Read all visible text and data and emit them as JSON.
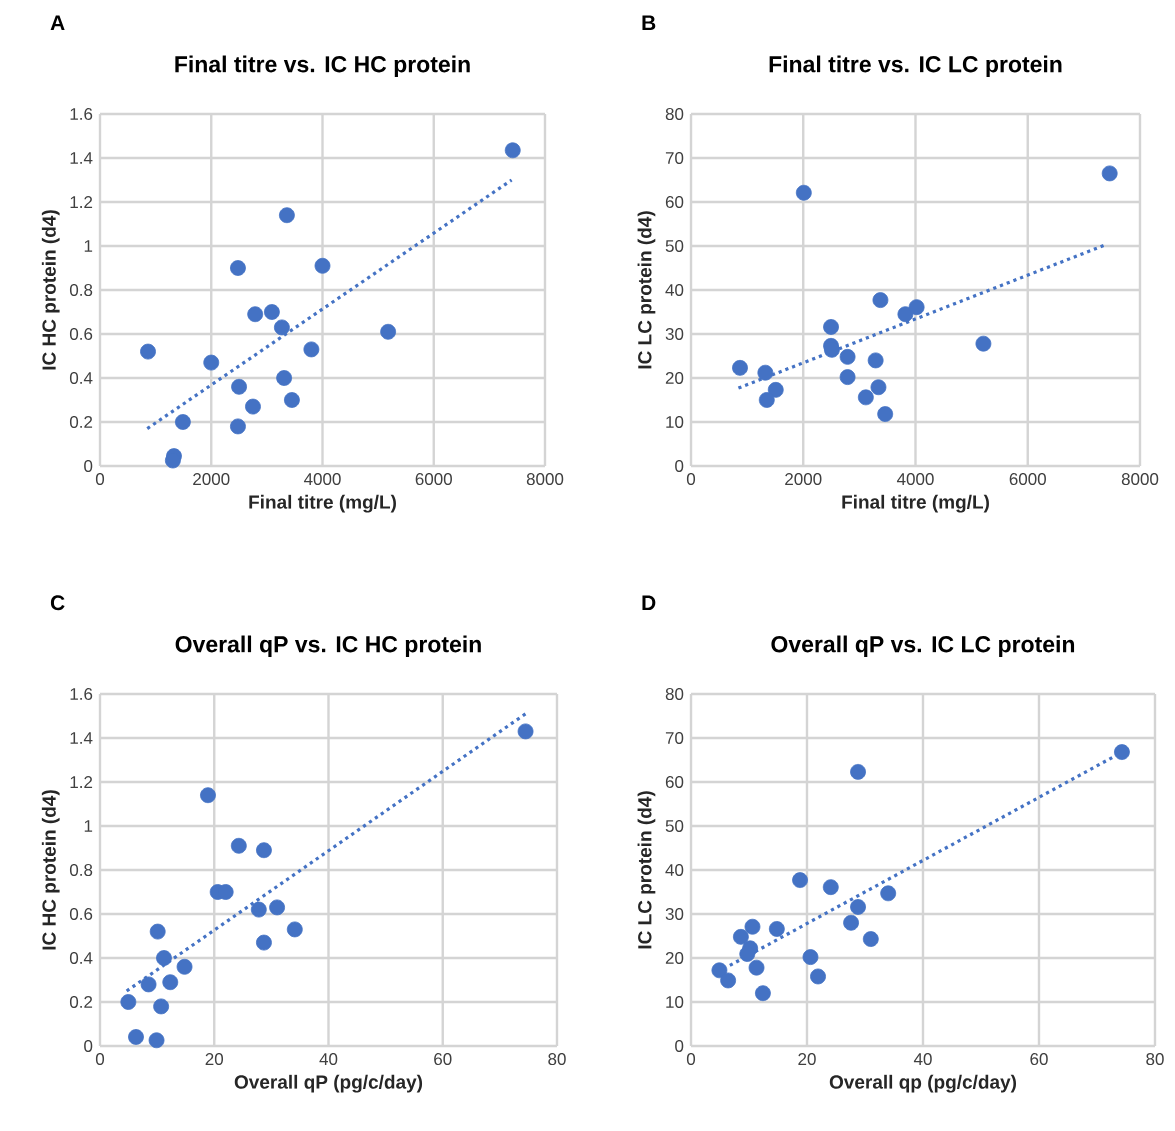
{
  "chart_data": [
    {
      "type": "scatter",
      "title": "Final titre vs. IC HC protein",
      "xlabel": "Final titre (mg/L)",
      "ylabel": "IC HC protein (d4)",
      "annotations": [
        "A"
      ],
      "xlim": [
        0,
        8000
      ],
      "xticks": [
        0,
        2000,
        4000,
        6000,
        8000
      ],
      "ylim": [
        0,
        1.6
      ],
      "yticks": [
        0,
        0.2,
        0.4,
        0.6,
        0.8,
        1,
        1.2,
        1.4,
        1.6
      ],
      "grid": true,
      "series": [
        {
          "marker": "circle",
          "color": "#4472c4",
          "x": [
            863,
            2480,
            3360,
            4000,
            2790,
            3090,
            3270,
            3800,
            5180,
            2000,
            2500,
            2750,
            3310,
            3450,
            1490,
            2480,
            1330,
            1310,
            7420
          ],
          "values": [
            0.52,
            0.9,
            1.14,
            0.91,
            0.69,
            0.7,
            0.63,
            0.53,
            0.61,
            0.47,
            0.36,
            0.27,
            0.4,
            0.3,
            0.2,
            0.18,
            0.045,
            0.025,
            1.435
          ]
        },
        {
          "type": "line",
          "line_style": "dotted",
          "color": "#4472c4",
          "x": [
            850,
            7400
          ],
          "values": [
            0.17,
            1.3
          ]
        }
      ]
    },
    {
      "type": "scatter",
      "title": "Final titre vs. IC LC protein",
      "xlabel": "Final titre (mg/L)",
      "ylabel": "IC LC protein (d4)",
      "annotations": [
        "B"
      ],
      "xlim": [
        0,
        8000
      ],
      "xticks": [
        0,
        2000,
        4000,
        6000,
        8000
      ],
      "ylim": [
        0,
        80
      ],
      "yticks": [
        0,
        10,
        20,
        30,
        40,
        50,
        60,
        70,
        80
      ],
      "grid": true,
      "series": [
        {
          "marker": "circle",
          "color": "#4472c4",
          "x": [
            873,
            2010,
            1325,
            1510,
            1350,
            2495,
            2495,
            2510,
            2790,
            2790,
            3375,
            3820,
            4020,
            3290,
            3340,
            3115,
            3460,
            5210,
            7460
          ],
          "values": [
            22.3,
            62.1,
            21.2,
            17.3,
            15.0,
            31.6,
            27.3,
            26.4,
            24.8,
            20.2,
            37.7,
            34.5,
            36.1,
            24.0,
            17.9,
            15.6,
            11.8,
            27.8,
            66.5
          ]
        },
        {
          "type": "line",
          "line_style": "dotted",
          "color": "#4472c4",
          "x": [
            845,
            7390
          ],
          "values": [
            17.7,
            50.3
          ]
        }
      ]
    },
    {
      "type": "scatter",
      "title": "Overall qP vs. IC HC protein",
      "xlabel": "Overall qP (pg/c/day)",
      "ylabel": "IC HC protein (d4)",
      "annotations": [
        "C"
      ],
      "xlim": [
        0,
        80
      ],
      "xticks": [
        0,
        20,
        40,
        60,
        80
      ],
      "ylim": [
        0,
        1.6
      ],
      "yticks": [
        0,
        0.2,
        0.4,
        0.6,
        0.8,
        1,
        1.2,
        1.4,
        1.6
      ],
      "grid": true,
      "series": [
        {
          "marker": "circle",
          "color": "#4472c4",
          "x": [
            4.96,
            6.3,
            9.9,
            10.7,
            8.5,
            12.3,
            11.2,
            14.8,
            10.1,
            18.9,
            20.6,
            22.0,
            24.3,
            28.7,
            27.8,
            31.0,
            28.7,
            34.1,
            74.5
          ],
          "values": [
            0.2,
            0.041,
            0.026,
            0.18,
            0.28,
            0.29,
            0.4,
            0.36,
            0.52,
            1.14,
            0.7,
            0.7,
            0.91,
            0.89,
            0.62,
            0.63,
            0.47,
            0.53,
            1.43
          ]
        },
        {
          "type": "line",
          "line_style": "dotted",
          "color": "#4472c4",
          "x": [
            4.67,
            74.5
          ],
          "values": [
            0.25,
            1.51
          ]
        }
      ]
    },
    {
      "type": "scatter",
      "title": "Overall qP vs. IC LC protein",
      "xlabel": "Overall qp (pg/c/day)",
      "ylabel": "IC LC protein (d4)",
      "annotations": [
        "D"
      ],
      "xlim": [
        0,
        80
      ],
      "xticks": [
        0,
        20,
        40,
        60,
        80
      ],
      "ylim": [
        0,
        80
      ],
      "yticks": [
        0,
        10,
        20,
        30,
        40,
        50,
        60,
        70,
        80
      ],
      "grid": true,
      "series": [
        {
          "marker": "circle",
          "color": "#4472c4",
          "x": [
            4.9,
            6.4,
            8.6,
            10.6,
            10.2,
            9.7,
            11.3,
            12.4,
            14.8,
            18.8,
            20.6,
            21.9,
            24.1,
            28.8,
            28.8,
            27.6,
            31.0,
            34.0,
            74.3
          ],
          "values": [
            17.2,
            14.9,
            24.8,
            27.1,
            22.2,
            20.9,
            17.8,
            12.0,
            26.6,
            37.7,
            20.2,
            15.8,
            36.1,
            62.3,
            31.6,
            28.0,
            24.3,
            34.7,
            66.8
          ]
        },
        {
          "type": "line",
          "line_style": "dotted",
          "color": "#4472c4",
          "x": [
            6.7,
            73.1
          ],
          "values": [
            18.3,
            65.9
          ]
        }
      ]
    }
  ]
}
